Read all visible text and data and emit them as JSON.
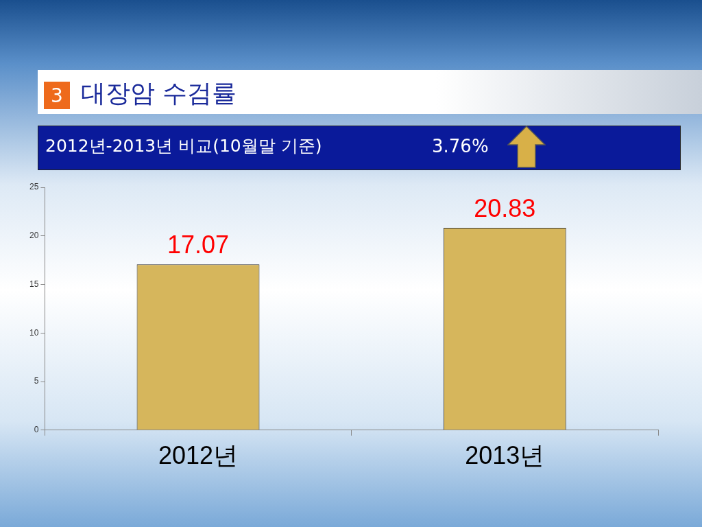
{
  "chart_data": {
    "type": "bar",
    "title": "대장암 수검률",
    "subtitle": "2012년-2013년 비교(10월말 기준)",
    "annotations": [
      "3",
      "3.76%"
    ],
    "categories": [
      "2012년",
      "2013년"
    ],
    "values": [
      17.07,
      20.83
    ],
    "color": "#d6b65c",
    "ylim": [
      0,
      25
    ],
    "yticks": [
      0,
      5,
      10,
      15,
      20,
      25
    ],
    "grid": false,
    "data_labels": true
  }
}
